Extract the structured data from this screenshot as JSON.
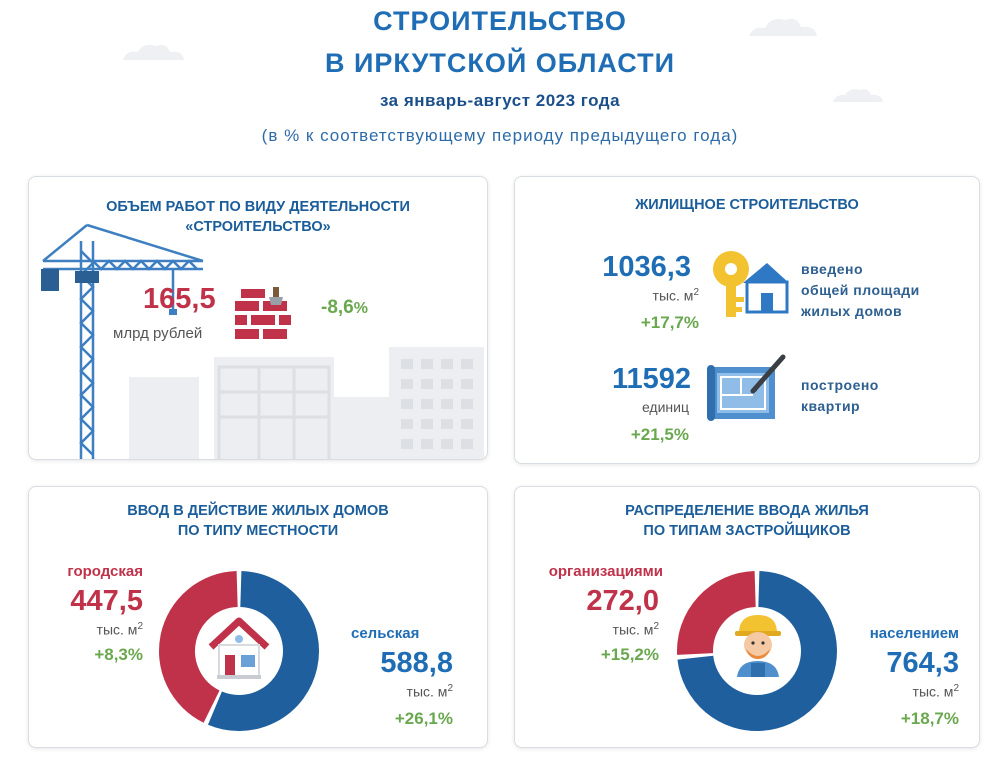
{
  "header": {
    "title_line1": "СТРОИТЕЛЬСТВО",
    "title_line2": "В ИРКУТСКОЙ ОБЛАСТИ",
    "period": "за январь-август 2023 года",
    "note": "(в % к соответствующему периоду предыдущего года)"
  },
  "works": {
    "title_line1": "ОБЪЕМ РАБОТ ПО ВИДУ ДЕЯТЕЛЬНОСТИ",
    "title_line2": "«СТРОИТЕЛЬСТВО»",
    "value": "165,5",
    "unit": "млрд рублей",
    "change": "-8,6",
    "percent_sign": "%",
    "icons": [
      "crane-icon",
      "brick-wall-icon",
      "buildings-silhouette"
    ]
  },
  "housing": {
    "title": "ЖИЛИЩНОЕ СТРОИТЕЛЬСТВО",
    "area": {
      "value": "1036,3",
      "unit": "тыс. м",
      "unit_sup": "2",
      "change": "+17,7",
      "percent_sign": "%",
      "desc_line1": "введено",
      "desc_line2": "общей площади",
      "desc_line3": "жилых домов",
      "icon": "key-house-icon"
    },
    "apartments": {
      "value": "11592",
      "unit": "единиц",
      "change": "+21,5",
      "percent_sign": "%",
      "desc_line1": "построено",
      "desc_line2": "квартир",
      "icon": "blueprint-icon"
    }
  },
  "by_locality": {
    "title_line1": "ВВОД В ДЕЙСТВИЕ ЖИЛЫХ ДОМОВ",
    "title_line2": "ПО ТИПУ МЕСТНОСТИ",
    "urban": {
      "label": "городская",
      "value": "447,5",
      "unit": "тыс. м",
      "unit_sup": "2",
      "change": "+8,3",
      "percent_sign": "%",
      "share": 0.4318,
      "color": "#c0324a"
    },
    "rural": {
      "label": "сельская",
      "value": "588,8",
      "unit": "тыс. м",
      "unit_sup": "2",
      "change": "+26,1",
      "percent_sign": "%",
      "share": 0.5682,
      "color": "#1f5f9e"
    },
    "icon": "house-icon"
  },
  "by_developer": {
    "title_line1": "РАСПРЕДЕЛЕНИЕ ВВОДА ЖИЛЬЯ",
    "title_line2": "ПО ТИПАМ ЗАСТРОЙЩИКОВ",
    "organizations": {
      "label": "организациями",
      "value": "272,0",
      "unit": "тыс. м",
      "unit_sup": "2",
      "change": "+15,2",
      "percent_sign": "%",
      "share": 0.2625,
      "color": "#c0324a"
    },
    "population": {
      "label": "населением",
      "value": "764,3",
      "unit": "тыс. м",
      "unit_sup": "2",
      "change": "+18,7",
      "percent_sign": "%",
      "share": 0.7375,
      "color": "#1f5f9e"
    },
    "icon": "builder-icon"
  }
}
